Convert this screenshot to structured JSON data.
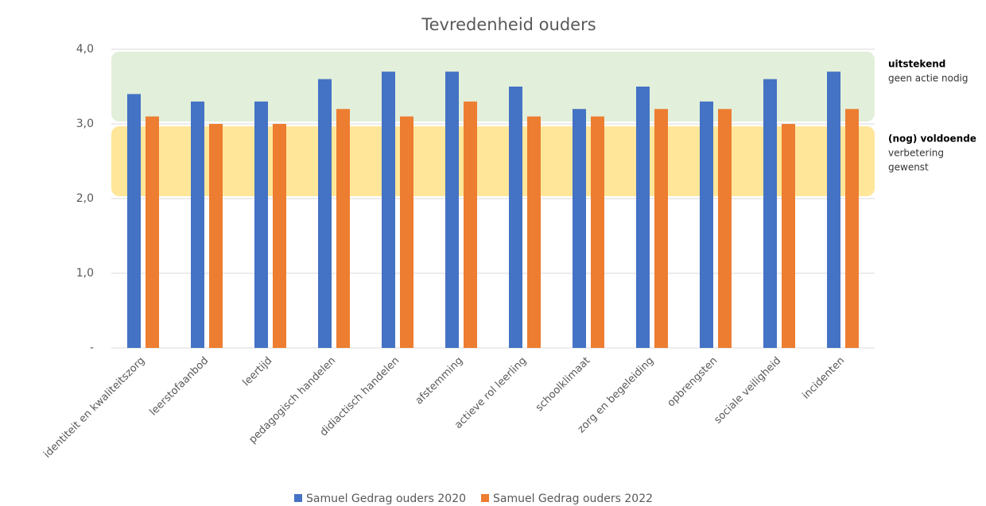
{
  "chart_data": {
    "type": "bar",
    "title": "Tevredenheid ouders",
    "categories": [
      "identiteit en kwaliteitszorg",
      "leerstofaanbod",
      "leertijd",
      "pedagogisch handelen",
      "didiactisch handelen",
      "afstemming",
      "actieve rol leerling",
      "schoolklimaat",
      "zorg en begeleiding",
      "opbrengsten",
      "sociale veiligheid",
      "incidenten"
    ],
    "series": [
      {
        "name": "Samuel Gedrag ouders 2020",
        "color": "#4472c4",
        "values": [
          3.4,
          3.3,
          3.3,
          3.6,
          3.7,
          3.7,
          3.5,
          3.2,
          3.5,
          3.3,
          3.6,
          3.7
        ]
      },
      {
        "name": "Samuel Gedrag ouders 2022",
        "color": "#ed7d31",
        "values": [
          3.1,
          3.0,
          3.0,
          3.2,
          3.1,
          3.3,
          3.1,
          3.1,
          3.2,
          3.2,
          3.0,
          3.2
        ]
      }
    ],
    "ylim": [
      0,
      4
    ],
    "yticks": [
      {
        "value": 0,
        "label": "-"
      },
      {
        "value": 1,
        "label": "1,0"
      },
      {
        "value": 2,
        "label": "2,0"
      },
      {
        "value": 3,
        "label": "3,0"
      },
      {
        "value": 4,
        "label": "4,0"
      }
    ],
    "grid": true,
    "legend": "bottom",
    "bands": [
      {
        "from": 3,
        "to": 4,
        "color": "#e2efda",
        "label": "uitstekend",
        "note": [
          "geen actie nodig"
        ]
      },
      {
        "from": 2,
        "to": 3,
        "color": "#ffe699",
        "label": "(nog) voldoende",
        "note": [
          "verbetering",
          "gewenst"
        ]
      }
    ]
  }
}
